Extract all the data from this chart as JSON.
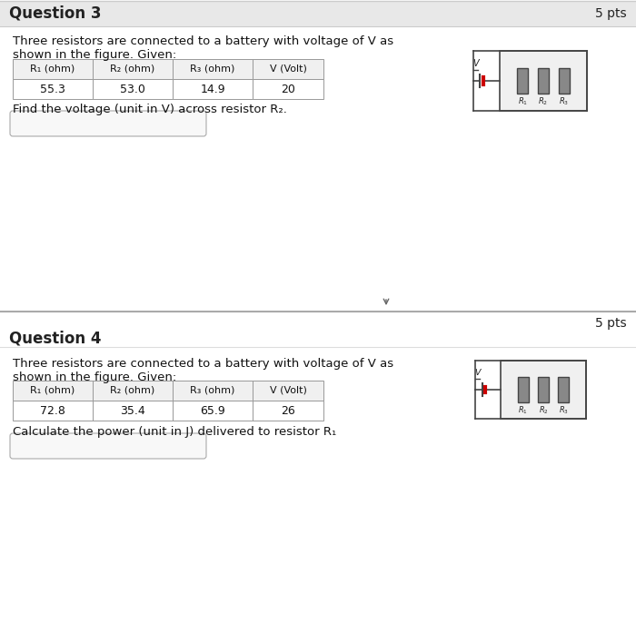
{
  "bg_color": "#d0d0d0",
  "white": "#ffffff",
  "q3_title": "Question 3",
  "q3_pts": "5 pts",
  "q3_desc1": "Three resistors are connected to a battery with voltage of V as",
  "q3_desc2": "shown in the figure. Given:",
  "q3_headers": [
    "R₁ (ohm)",
    "R₂ (ohm)",
    "R₃ (ohm)",
    "V (Volt)"
  ],
  "q3_values": [
    "55.3",
    "53.0",
    "14.9",
    "20"
  ],
  "q3_question": "Find the voltage (unit in V) across resistor R₂.",
  "q4_title": "Question 4",
  "q4_pts": "5 pts",
  "q4_desc1": "Three resistors are connected to a battery with voltage of V as",
  "q4_desc2": "shown in the figure. Given:",
  "q4_headers": [
    "R₁ (ohm)",
    "R₂ (ohm)",
    "R₃ (ohm)",
    "V (Volt)"
  ],
  "q4_values": [
    "72.8",
    "35.4",
    "65.9",
    "26"
  ],
  "q4_question": "Calculate the power (unit in J) delivered to resistor R₁"
}
